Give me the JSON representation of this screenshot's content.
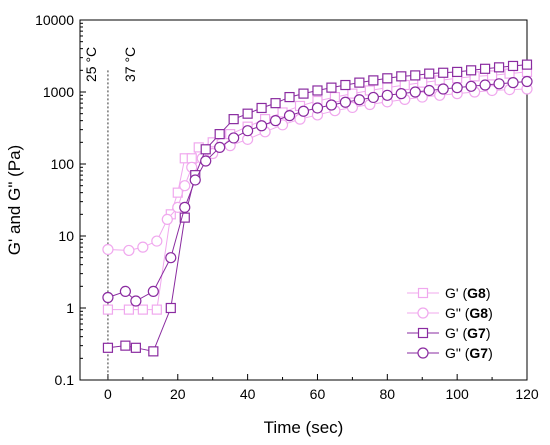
{
  "chart_data": {
    "type": "scatter",
    "title": "",
    "xlabel": "Time (sec)",
    "ylabel": "G' and G\" (Pa)",
    "xlim": [
      -8,
      120
    ],
    "ylim": [
      0.1,
      10000
    ],
    "yscale": "log",
    "x_ticks": [
      "0",
      "20",
      "40",
      "60",
      "80",
      "100",
      "120"
    ],
    "y_ticks": [
      "0.1",
      "1",
      "10",
      "100",
      "1000",
      "10000"
    ],
    "annotations": [
      {
        "text": "25 °C",
        "x": 0
      },
      {
        "text": "37 °C",
        "x": 5
      }
    ],
    "vline_x": 0,
    "legend_position": "bottom-right",
    "series": [
      {
        "legend_prefix": "G' (",
        "legend_bold": "G8",
        "legend_suffix": ")",
        "marker": "square",
        "color": "#f0a8ee",
        "x": [
          0,
          6,
          10,
          14,
          18,
          20,
          22,
          24,
          26,
          30,
          35,
          40,
          45,
          50,
          55,
          60,
          65,
          70,
          75,
          80,
          85,
          90,
          95,
          100,
          105,
          110,
          115,
          120
        ],
        "y": [
          0.95,
          0.95,
          0.95,
          0.95,
          20,
          40,
          120,
          120,
          170,
          200,
          260,
          330,
          420,
          520,
          640,
          750,
          850,
          950,
          1050,
          1150,
          1250,
          1350,
          1450,
          1550,
          1650,
          1700,
          1800,
          1900
        ]
      },
      {
        "legend_prefix": "G\" (",
        "legend_bold": "G8",
        "legend_suffix": ")",
        "marker": "circle",
        "color": "#f0a8ee",
        "x": [
          0,
          6,
          10,
          14,
          17,
          20,
          22,
          24,
          27,
          30,
          35,
          40,
          45,
          50,
          55,
          60,
          65,
          70,
          75,
          80,
          85,
          90,
          95,
          100,
          105,
          110,
          115,
          120
        ],
        "y": [
          6.5,
          6.3,
          7,
          8.5,
          17,
          25,
          50,
          90,
          120,
          140,
          180,
          220,
          280,
          350,
          420,
          480,
          550,
          610,
          670,
          730,
          790,
          850,
          900,
          950,
          1000,
          1050,
          1080,
          1100
        ]
      },
      {
        "legend_prefix": "G' (",
        "legend_bold": "G7",
        "legend_suffix": ")",
        "marker": "square",
        "color": "#8a2ba0",
        "x": [
          0,
          5,
          8,
          13,
          18,
          22,
          25,
          28,
          32,
          36,
          40,
          44,
          48,
          52,
          56,
          60,
          64,
          68,
          72,
          76,
          80,
          84,
          88,
          92,
          96,
          100,
          104,
          108,
          112,
          116,
          120
        ],
        "y": [
          0.28,
          0.3,
          0.28,
          0.25,
          1,
          18,
          70,
          160,
          260,
          420,
          500,
          600,
          700,
          850,
          950,
          1050,
          1150,
          1250,
          1350,
          1450,
          1550,
          1650,
          1700,
          1800,
          1850,
          1900,
          2000,
          2100,
          2200,
          2300,
          2400
        ]
      },
      {
        "legend_prefix": "G\" (",
        "legend_bold": "G7",
        "legend_suffix": ")",
        "marker": "circle",
        "color": "#8a2ba0",
        "x": [
          0,
          5,
          8,
          13,
          18,
          22,
          25,
          28,
          32,
          36,
          40,
          44,
          48,
          52,
          56,
          60,
          64,
          68,
          72,
          76,
          80,
          84,
          88,
          92,
          96,
          100,
          104,
          108,
          112,
          116,
          120
        ],
        "y": [
          1.4,
          1.7,
          1.25,
          1.7,
          5,
          25,
          60,
          110,
          170,
          230,
          290,
          340,
          400,
          470,
          540,
          600,
          660,
          720,
          780,
          840,
          900,
          950,
          1000,
          1050,
          1100,
          1150,
          1200,
          1250,
          1300,
          1350,
          1400
        ]
      }
    ]
  }
}
